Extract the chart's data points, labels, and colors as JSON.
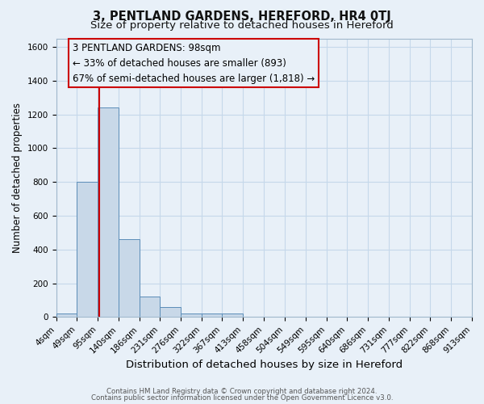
{
  "title": "3, PENTLAND GARDENS, HEREFORD, HR4 0TJ",
  "subtitle": "Size of property relative to detached houses in Hereford",
  "xlabel": "Distribution of detached houses by size in Hereford",
  "ylabel": "Number of detached properties",
  "footer_lines": [
    "Contains HM Land Registry data © Crown copyright and database right 2024.",
    "Contains public sector information licensed under the Open Government Licence v3.0."
  ],
  "bin_labels": [
    "4sqm",
    "49sqm",
    "95sqm",
    "140sqm",
    "186sqm",
    "231sqm",
    "276sqm",
    "322sqm",
    "367sqm",
    "413sqm",
    "458sqm",
    "504sqm",
    "549sqm",
    "595sqm",
    "640sqm",
    "686sqm",
    "731sqm",
    "777sqm",
    "822sqm",
    "868sqm",
    "913sqm"
  ],
  "bin_edges": [
    4,
    49,
    95,
    140,
    186,
    231,
    276,
    322,
    367,
    413,
    458,
    504,
    549,
    595,
    640,
    686,
    731,
    777,
    822,
    868,
    913
  ],
  "bar_heights": [
    20,
    800,
    1240,
    460,
    120,
    60,
    20,
    20,
    20,
    0,
    0,
    0,
    0,
    0,
    0,
    0,
    0,
    0,
    0,
    0
  ],
  "bar_color": "#c8d8e8",
  "bar_edge_color": "#5b8db8",
  "property_value": 98,
  "red_line_color": "#cc0000",
  "annotation_line1": "3 PENTLAND GARDENS: 98sqm",
  "annotation_line2": "← 33% of detached houses are smaller (893)",
  "annotation_line3": "67% of semi-detached houses are larger (1,818) →",
  "annotation_box_edge_color": "#cc0000",
  "annotation_fontsize": 8.5,
  "ylim": [
    0,
    1650
  ],
  "yticks": [
    0,
    200,
    400,
    600,
    800,
    1000,
    1200,
    1400,
    1600
  ],
  "grid_color": "#c5d8ea",
  "background_color": "#e8f0f8",
  "title_fontsize": 10.5,
  "subtitle_fontsize": 9.5,
  "xlabel_fontsize": 9.5,
  "ylabel_fontsize": 8.5,
  "tick_fontsize": 7.5,
  "footer_fontsize": 6.2
}
